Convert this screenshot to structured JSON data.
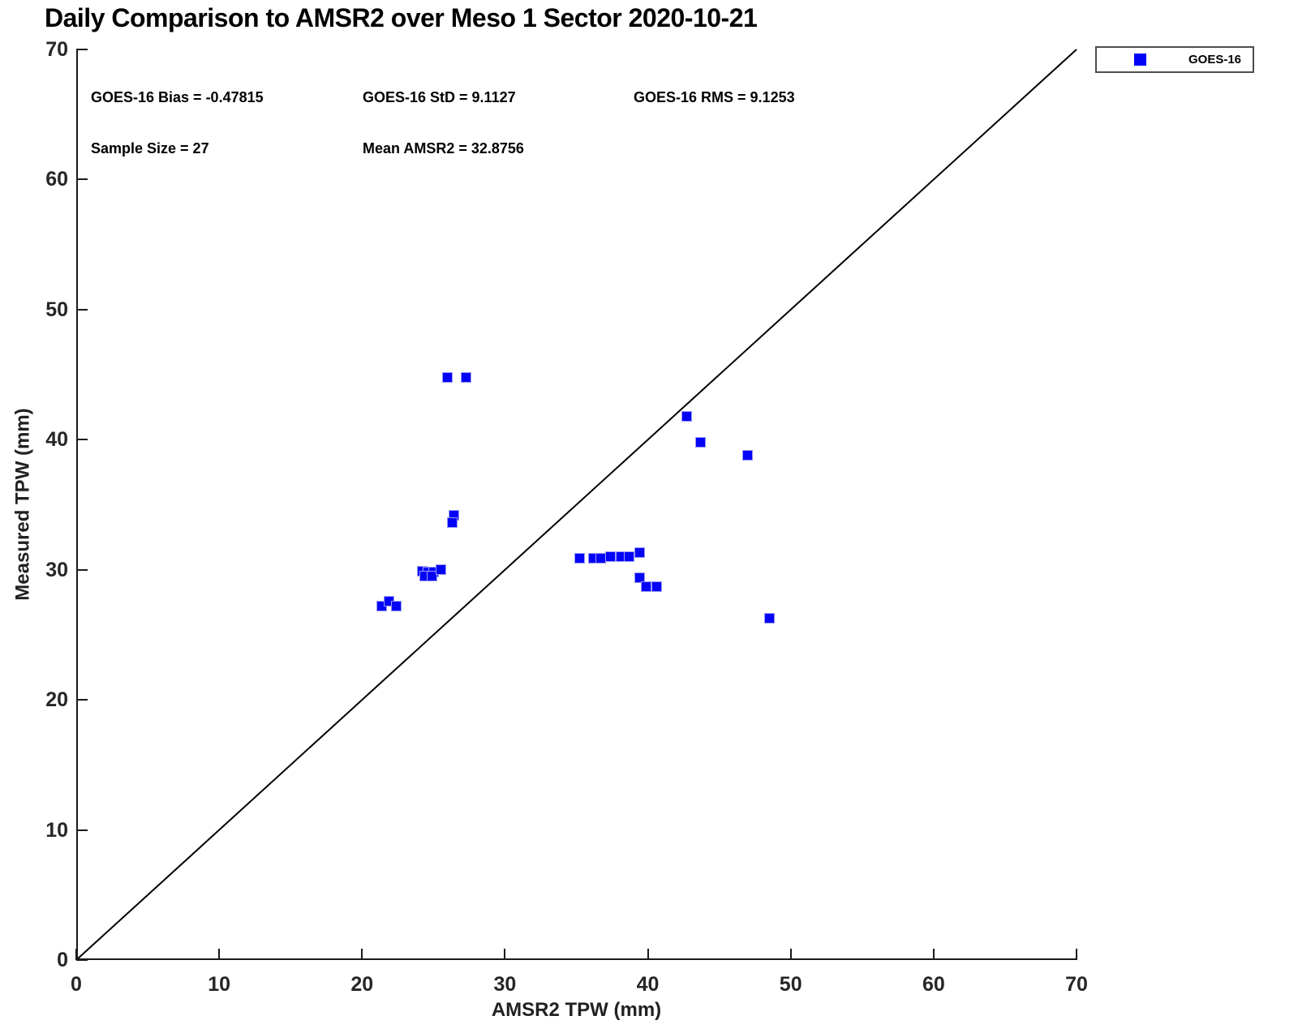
{
  "chart_data": {
    "type": "scatter",
    "title": "Daily Comparison to AMSR2 over Meso 1 Sector 2020-10-21",
    "xlabel": "AMSR2 TPW (mm)",
    "ylabel": "Measured TPW (mm)",
    "xlim": [
      0,
      70
    ],
    "ylim": [
      0,
      70
    ],
    "xticks": [
      0,
      10,
      20,
      30,
      40,
      50,
      60,
      70
    ],
    "yticks": [
      0,
      10,
      20,
      30,
      40,
      50,
      60,
      70
    ],
    "grid": false,
    "legend_position": "top-right-outside",
    "identity_line": {
      "from": [
        0,
        0
      ],
      "to": [
        70,
        70
      ],
      "color": "#000000"
    },
    "annotations": {
      "bias": "GOES-16 Bias = -0.47815",
      "std": "GOES-16 StD = 9.1127",
      "rms": "GOES-16 RMS = 9.1253",
      "sample_size": "Sample Size = 27",
      "mean_amsr2": "Mean AMSR2 = 32.8756"
    },
    "series": [
      {
        "name": "GOES-16",
        "marker": "square",
        "color": "#0303f6",
        "points": [
          [
            26.0,
            44.8
          ],
          [
            27.3,
            44.8
          ],
          [
            42.7,
            41.8
          ],
          [
            43.7,
            39.8
          ],
          [
            47.0,
            38.8
          ],
          [
            26.4,
            34.2
          ],
          [
            26.3,
            33.6
          ],
          [
            24.2,
            29.9
          ],
          [
            24.6,
            29.8
          ],
          [
            25.0,
            29.8
          ],
          [
            24.4,
            29.5
          ],
          [
            24.9,
            29.5
          ],
          [
            25.5,
            30.0
          ],
          [
            21.4,
            27.2
          ],
          [
            21.9,
            27.6
          ],
          [
            22.4,
            27.2
          ],
          [
            35.2,
            30.9
          ],
          [
            36.2,
            30.9
          ],
          [
            36.7,
            30.9
          ],
          [
            37.4,
            31.0
          ],
          [
            38.1,
            31.0
          ],
          [
            38.7,
            31.0
          ],
          [
            39.4,
            31.3
          ],
          [
            39.4,
            29.4
          ],
          [
            39.9,
            28.7
          ],
          [
            40.6,
            28.7
          ],
          [
            48.5,
            26.3
          ]
        ]
      }
    ]
  }
}
